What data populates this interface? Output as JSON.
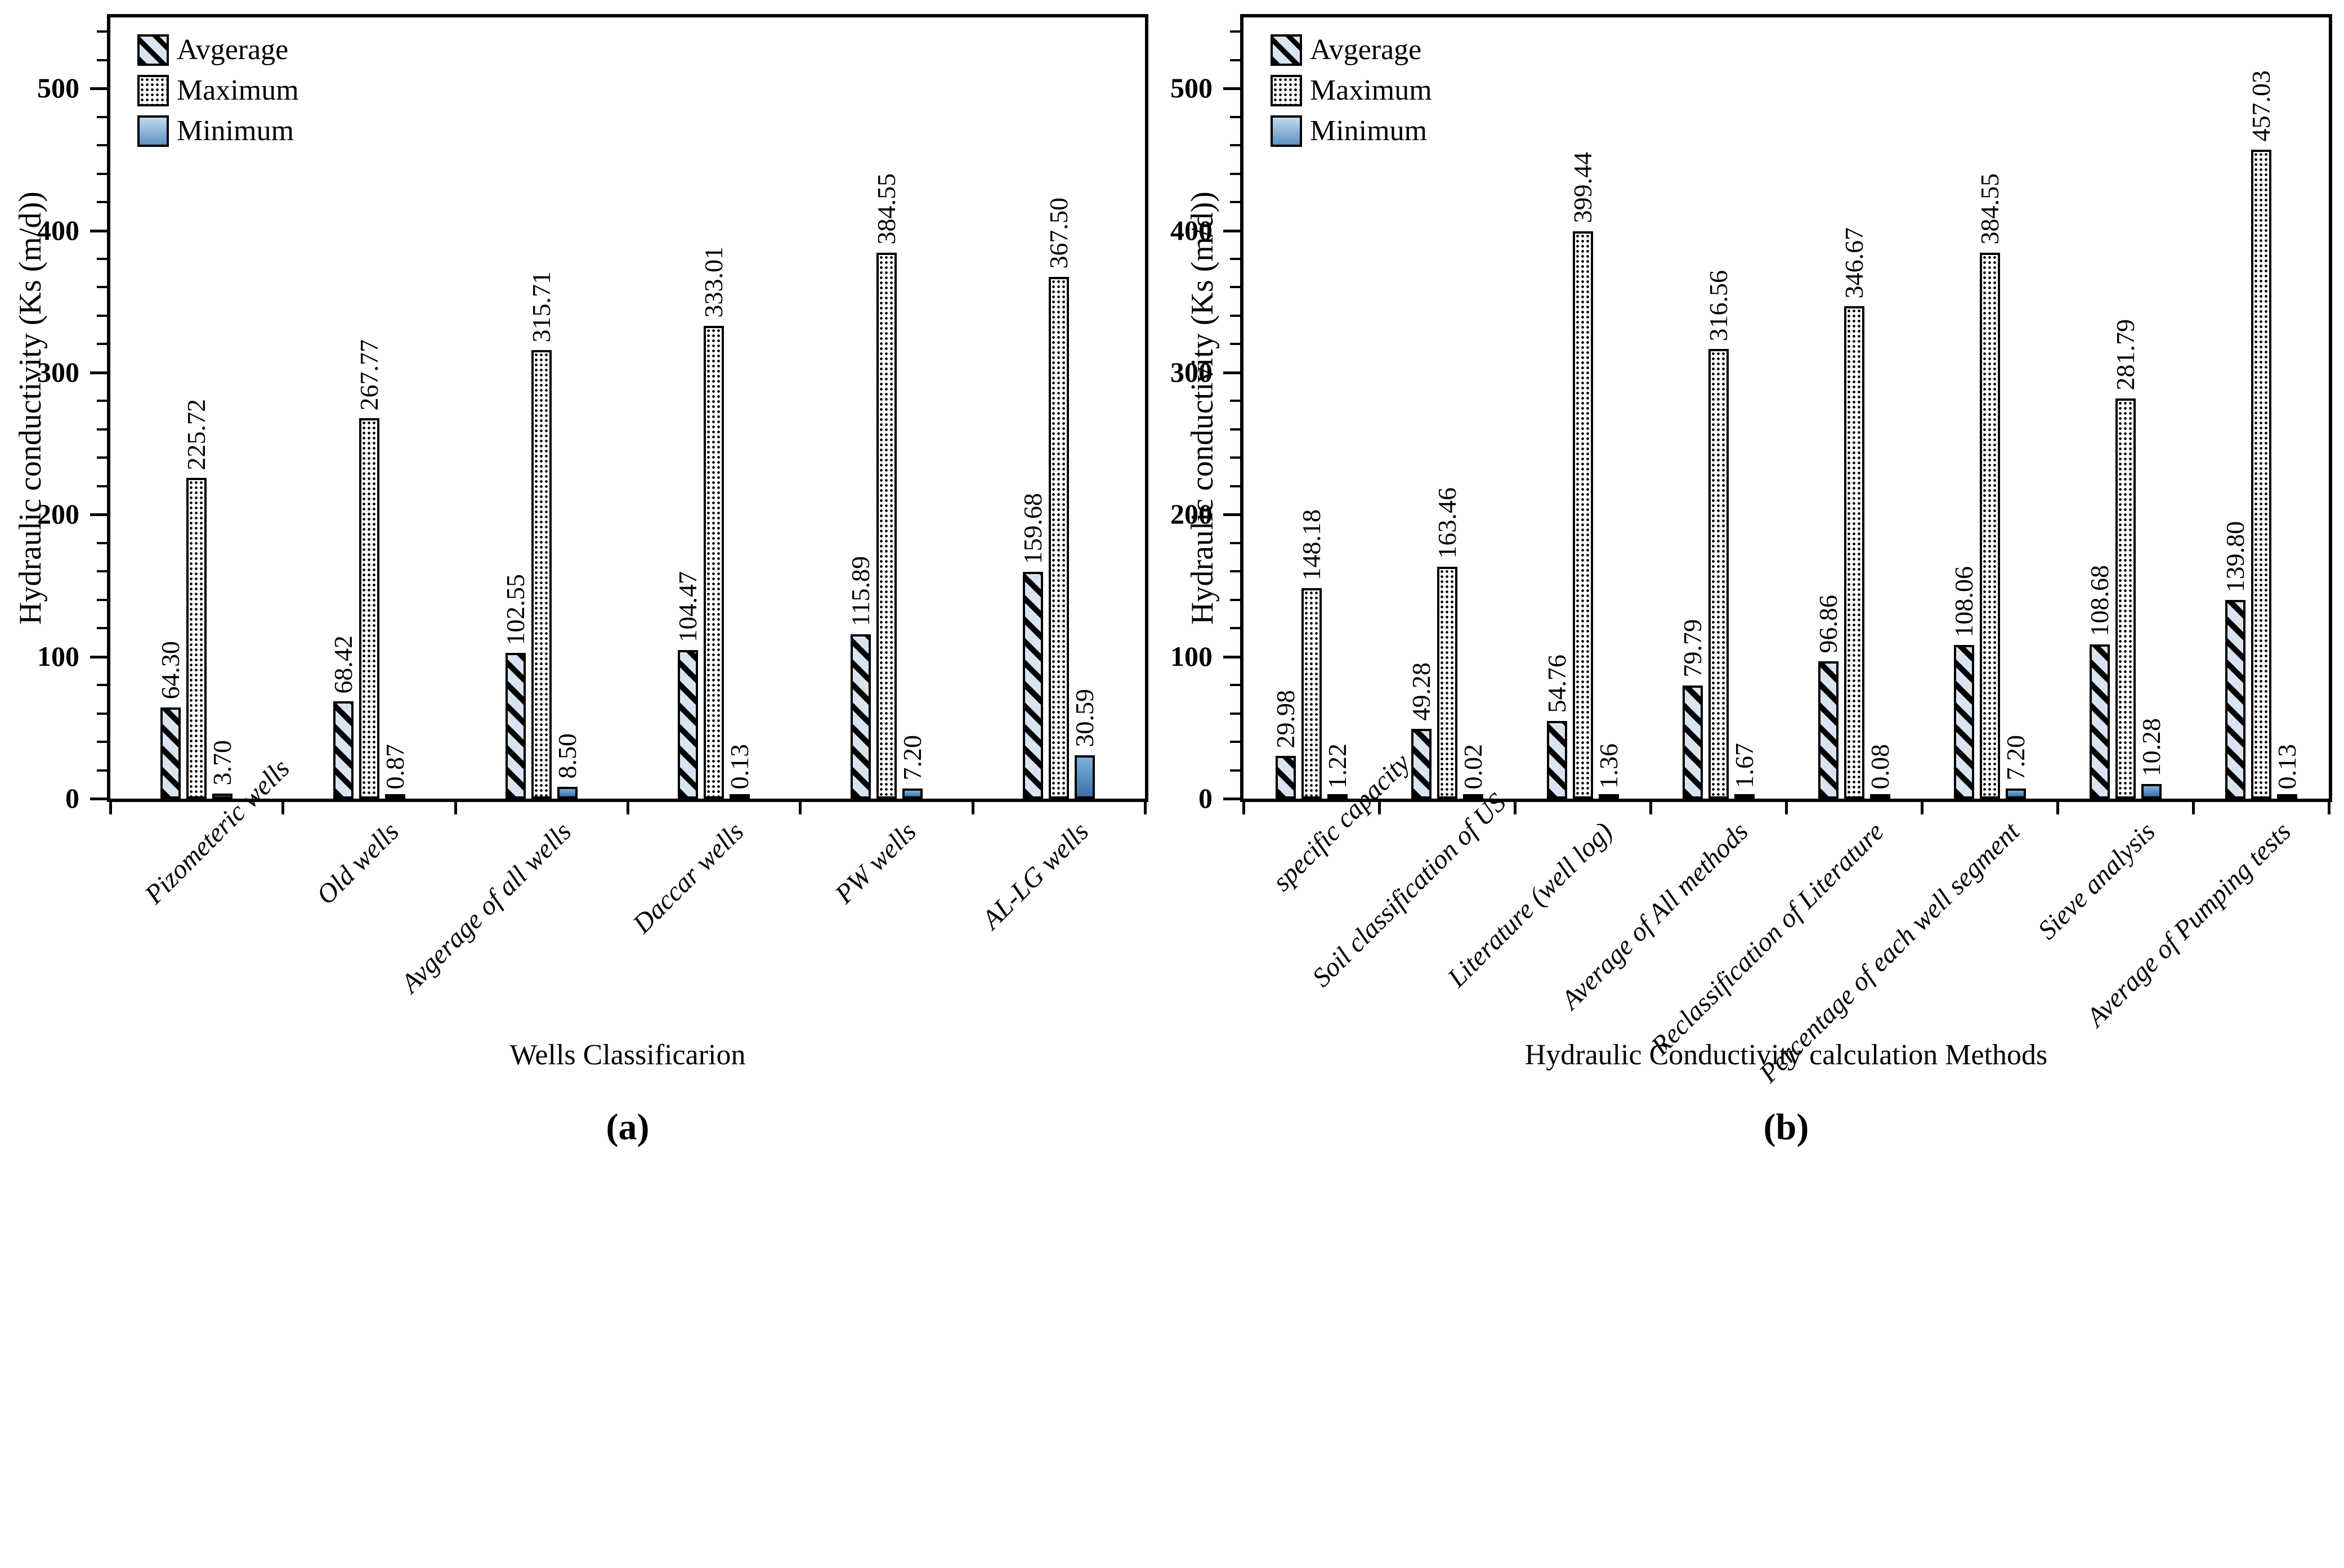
{
  "colors": {
    "ink": "#000000",
    "hatch_fill": "#d9e4f1",
    "dot_fill": "#ffffff",
    "minimum_top": "#7fb0dd",
    "minimum_bottom": "#3a72a8"
  },
  "legend_items": [
    "Avgerage",
    "Maximum",
    "Minimum"
  ],
  "chart_data": [
    {
      "id": "a",
      "type": "bar",
      "panel_label": "(a)",
      "xlabel": "Wells Classificarion",
      "ylabel": "Hydraulic conductivity (Ks (m/d))",
      "categories": [
        "Pizometeric wells",
        "Old wells",
        "Avgerage of all wells",
        "Daccar wells",
        "PW wells",
        "AL-LG wells"
      ],
      "series": [
        {
          "name": "Avgerage",
          "values": [
            64.3,
            68.42,
            102.55,
            104.47,
            115.89,
            159.68
          ]
        },
        {
          "name": "Maximum",
          "values": [
            225.72,
            267.77,
            315.71,
            333.01,
            384.55,
            367.5
          ]
        },
        {
          "name": "Minimum",
          "values": [
            3.7,
            0.87,
            8.5,
            0.13,
            7.2,
            30.59
          ]
        }
      ],
      "ylim": [
        0,
        550
      ],
      "yticks": [
        0,
        100,
        200,
        300,
        400,
        500
      ],
      "minor_tick_interval": 20,
      "value_label_decimals": 2,
      "legend_position": "top-left",
      "grid": false
    },
    {
      "id": "b",
      "type": "bar",
      "panel_label": "(b)",
      "xlabel": "Hydraulic Conductivity calculation Methods",
      "ylabel": "Hydraulic conductivity (Ks (m/d))",
      "categories": [
        "specific capacity",
        "Soil classification of US",
        "Literature (well log)",
        "Average of All methods",
        "Reclassification of Literature",
        "Percentage of each well segment",
        "Sieve analysis",
        "Average of Pumping tests"
      ],
      "series": [
        {
          "name": "Avgerage",
          "values": [
            29.98,
            49.28,
            54.76,
            79.79,
            96.86,
            108.06,
            108.68,
            139.8
          ]
        },
        {
          "name": "Maximum",
          "values": [
            148.18,
            163.46,
            399.44,
            316.56,
            346.67,
            384.55,
            281.79,
            457.03
          ]
        },
        {
          "name": "Minimum",
          "values": [
            1.22,
            0.02,
            1.36,
            1.67,
            0.08,
            7.2,
            10.28,
            0.13
          ]
        }
      ],
      "ylim": [
        0,
        550
      ],
      "yticks": [
        0,
        100,
        200,
        300,
        400,
        500
      ],
      "minor_tick_interval": 20,
      "value_label_decimals": 2,
      "legend_position": "top-left",
      "grid": false
    }
  ]
}
